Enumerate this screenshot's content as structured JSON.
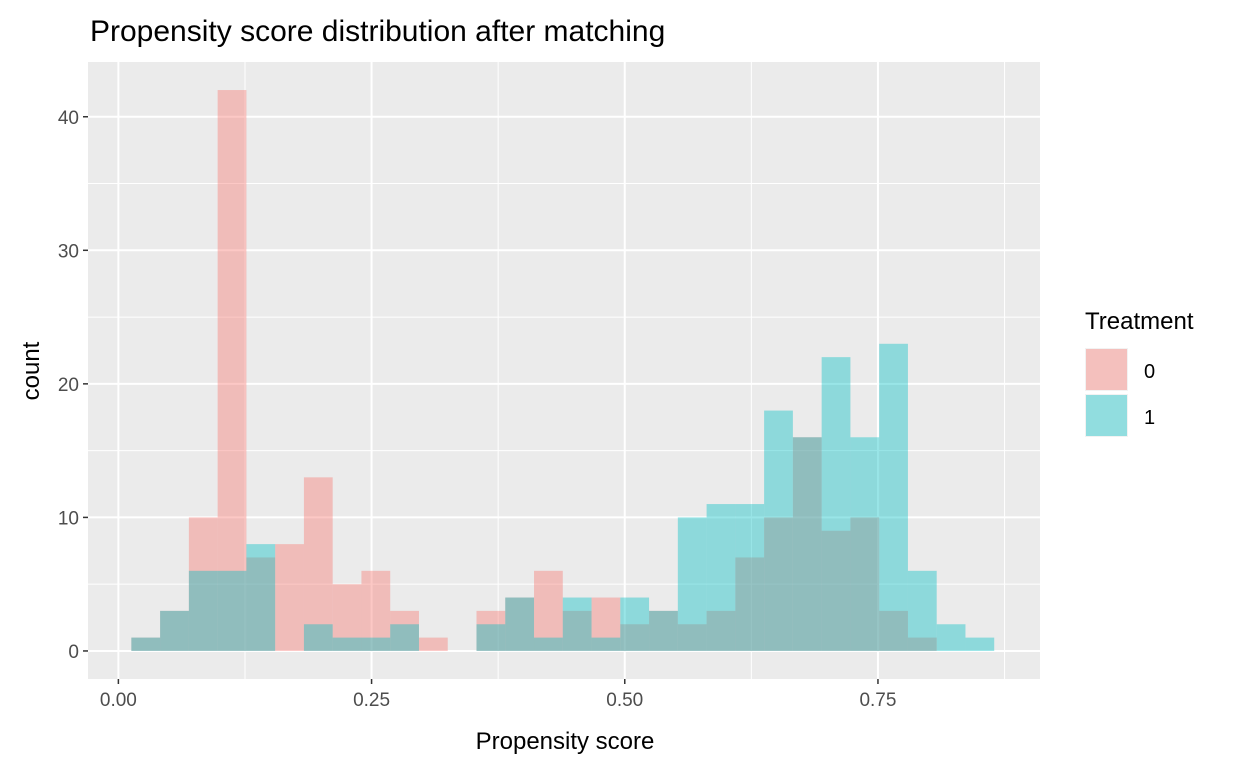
{
  "chart_data": {
    "type": "bar",
    "subtype": "overlapping-histogram",
    "title": "Propensity score distribution after matching",
    "xlabel": "Propensity score",
    "ylabel": "count",
    "xlim": [
      -0.03,
      0.91
    ],
    "ylim": [
      -2.1,
      44.1
    ],
    "xticks": [
      0,
      0.25,
      0.5,
      0.75
    ],
    "xtick_labels": [
      "0.00",
      "0.25",
      "0.50",
      "0.75"
    ],
    "yticks": [
      0,
      10,
      20,
      30,
      40
    ],
    "ytick_labels": [
      "0",
      "10",
      "20",
      "30",
      "40"
    ],
    "bin_start": 0.0128,
    "bin_width": 0.0284,
    "grid": true,
    "legend": {
      "title": "Treatment",
      "placement": "right"
    },
    "series": [
      {
        "name": "0",
        "color": "#F8766D",
        "values": [
          1,
          3,
          10,
          42,
          7,
          8,
          13,
          5,
          6,
          3,
          1,
          0,
          3,
          4,
          6,
          3,
          4,
          2,
          3,
          2,
          3,
          7,
          10,
          16,
          9,
          10,
          3,
          1,
          0,
          0
        ]
      },
      {
        "name": "1",
        "color": "#00BFC4",
        "values": [
          1,
          3,
          6,
          6,
          8,
          0,
          2,
          1,
          1,
          2,
          0,
          0,
          2,
          4,
          1,
          4,
          1,
          4,
          3,
          10,
          11,
          11,
          18,
          16,
          22,
          16,
          23,
          6,
          2,
          1
        ]
      }
    ]
  }
}
